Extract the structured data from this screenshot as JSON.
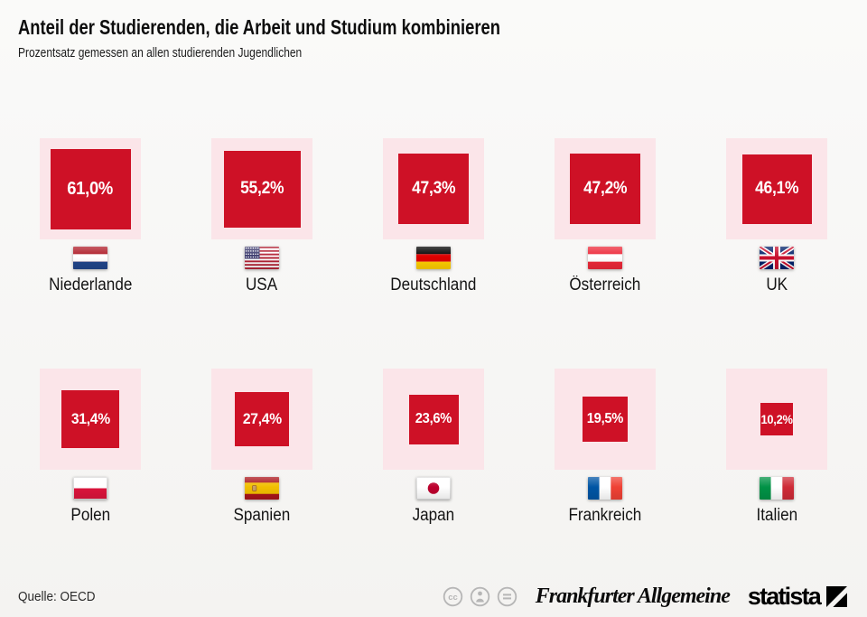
{
  "header": {
    "title": "Anteil der Studierenden, die Arbeit und Studium kombinieren",
    "subtitle": "Prozentsatz gemessen an allen studierenden Jugendlichen"
  },
  "chart_data": {
    "type": "bar",
    "variant": "proportional-area-squares",
    "title": "Anteil der Studierenden, die Arbeit und Studium kombinieren",
    "subtitle": "Prozentsatz gemessen an allen studierenden Jugendlichen",
    "unit": "%",
    "categories": [
      "Niederlande",
      "USA",
      "Deutschland",
      "Österreich",
      "UK",
      "Polen",
      "Spanien",
      "Japan",
      "Frankreich",
      "Italien"
    ],
    "values": [
      61.0,
      55.2,
      47.3,
      47.2,
      46.1,
      31.4,
      27.4,
      23.6,
      19.5,
      10.2
    ],
    "value_labels": [
      "61,0%",
      "55,2%",
      "47,3%",
      "47,2%",
      "46,1%",
      "31,4%",
      "27,4%",
      "23,6%",
      "19,5%",
      "10,2%"
    ],
    "layout": {
      "rows": 2,
      "columns": 5,
      "legend": "none",
      "grid": "off"
    },
    "colors": {
      "square": "#ce1126",
      "tile": "#fbe5e9",
      "value_text": "#ffffff"
    },
    "countries": [
      {
        "name": "Niederlande",
        "value": 61.0,
        "label": "61,0%",
        "flag": "netherlands"
      },
      {
        "name": "USA",
        "value": 55.2,
        "label": "55,2%",
        "flag": "usa"
      },
      {
        "name": "Deutschland",
        "value": 47.3,
        "label": "47,3%",
        "flag": "germany"
      },
      {
        "name": "Österreich",
        "value": 47.2,
        "label": "47,2%",
        "flag": "austria"
      },
      {
        "name": "UK",
        "value": 46.1,
        "label": "46,1%",
        "flag": "uk"
      },
      {
        "name": "Polen",
        "value": 31.4,
        "label": "31,4%",
        "flag": "poland"
      },
      {
        "name": "Spanien",
        "value": 27.4,
        "label": "27,4%",
        "flag": "spain"
      },
      {
        "name": "Japan",
        "value": 23.6,
        "label": "23,6%",
        "flag": "japan"
      },
      {
        "name": "Frankreich",
        "value": 19.5,
        "label": "19,5%",
        "flag": "france"
      },
      {
        "name": "Italien",
        "value": 10.2,
        "label": "10,2%",
        "flag": "italy"
      }
    ]
  },
  "footer": {
    "source": "Quelle: OECD",
    "cc_icons": [
      "cc-icon",
      "attribution-person-icon",
      "equal-icon"
    ],
    "faz": "Frankfurter Allgemeine",
    "statista": "statista"
  }
}
